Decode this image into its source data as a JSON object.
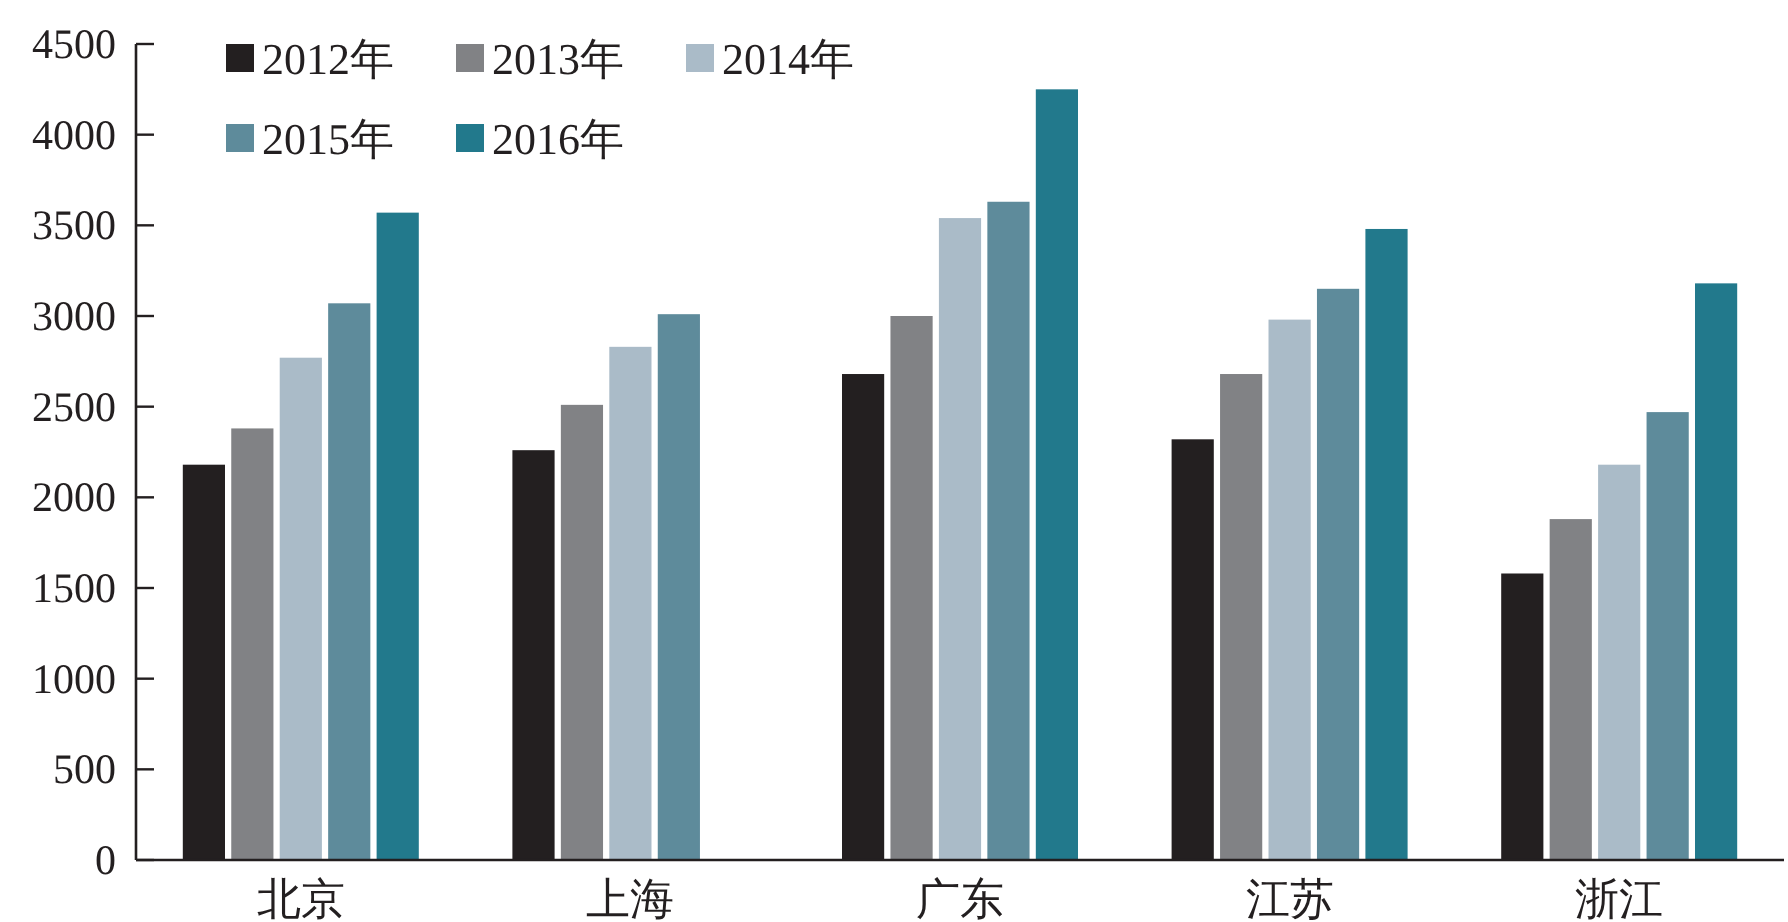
{
  "chart_data": {
    "type": "bar",
    "categories": [
      "北京",
      "上海",
      "广东",
      "江苏",
      "浙江"
    ],
    "ylim": [
      0,
      4500
    ],
    "yticks": [
      0,
      500,
      1000,
      1500,
      2000,
      2500,
      3000,
      3500,
      4000,
      4500
    ],
    "legend": "top left",
    "series": [
      {
        "name": "2012年",
        "color": "#231f20",
        "values": [
          2180,
          2260,
          2680,
          2320,
          1580
        ]
      },
      {
        "name": "2013年",
        "color": "#818285",
        "values": [
          2380,
          2510,
          3000,
          2680,
          1880
        ]
      },
      {
        "name": "2014年",
        "color": "#aabbc8",
        "values": [
          2770,
          2830,
          3540,
          2980,
          2180
        ]
      },
      {
        "name": "2015年",
        "color": "#5e8b9b",
        "values": [
          3070,
          3010,
          3630,
          3150,
          2470
        ]
      },
      {
        "name": "2016年",
        "color": "#22798c",
        "values": [
          3570,
          null,
          4250,
          3480,
          3180
        ]
      }
    ]
  }
}
